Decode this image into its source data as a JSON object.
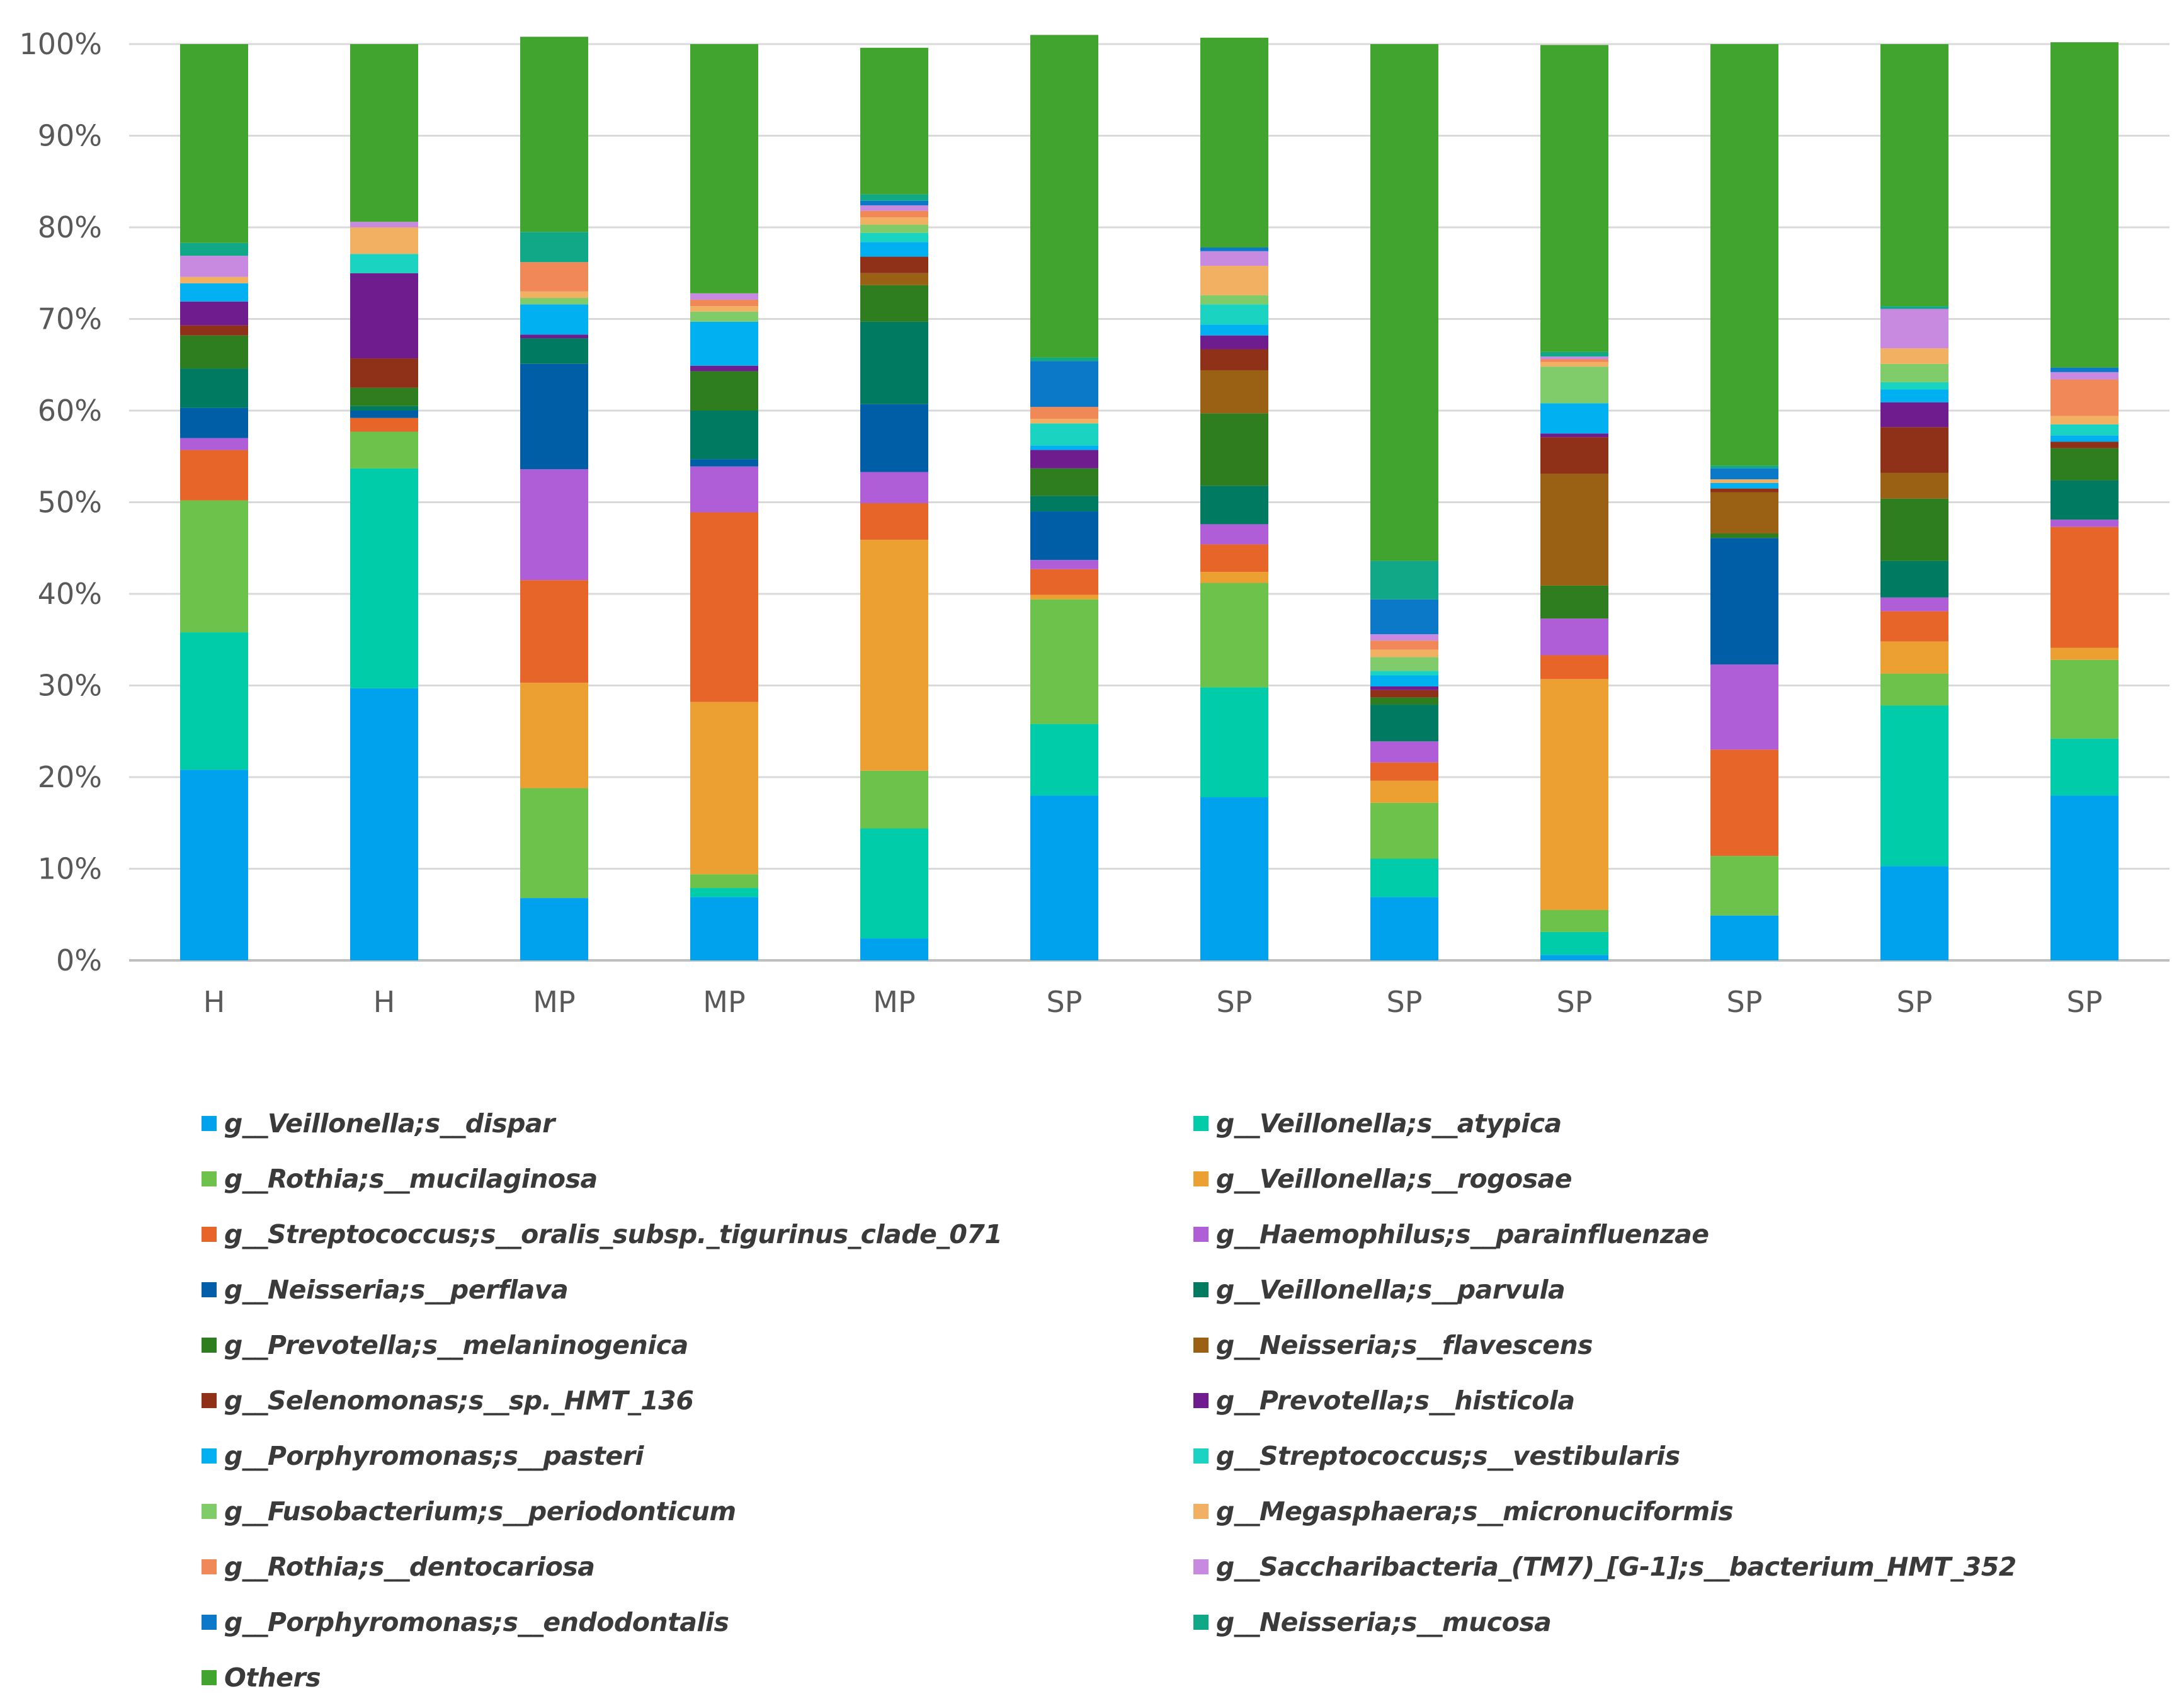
{
  "chart_data": {
    "type": "bar",
    "stacked": true,
    "percent": true,
    "title": "",
    "xlabel": "",
    "ylabel": "",
    "ylim": [
      0,
      100
    ],
    "y_ticks": [
      "0%",
      "10%",
      "20%",
      "30%",
      "40%",
      "50%",
      "60%",
      "70%",
      "80%",
      "90%",
      "100%"
    ],
    "categories": [
      "H",
      "H",
      "MP",
      "MP",
      "MP",
      "SP",
      "SP",
      "SP",
      "SP",
      "SP",
      "SP",
      "SP"
    ],
    "legend_position": "bottom",
    "series": [
      {
        "name": "g__Veillonella;s__dispar",
        "color": "#00a2ee",
        "values": [
          20.8,
          29.7,
          6.8,
          6.9,
          2.4,
          18.0,
          17.8,
          6.9,
          0.6,
          4.9,
          10.3,
          18.0
        ]
      },
      {
        "name": "g__Veillonella;s__atypica",
        "color": "#00ccaa",
        "values": [
          15.0,
          24.0,
          0,
          1.0,
          12.0,
          7.8,
          12.0,
          4.2,
          2.5,
          0,
          17.5,
          6.2
        ]
      },
      {
        "name": "g__Rothia;s__mucilaginosa",
        "color": "#6cc24a",
        "values": [
          14.4,
          4.0,
          12.0,
          1.5,
          6.3,
          13.6,
          11.4,
          6.1,
          2.4,
          6.5,
          3.5,
          8.6
        ]
      },
      {
        "name": "g__Veillonella;s__rogosae",
        "color": "#eda032",
        "values": [
          0,
          0,
          11.5,
          18.8,
          25.2,
          0.5,
          1.2,
          2.4,
          25.2,
          0,
          3.5,
          1.3
        ]
      },
      {
        "name": "g__Streptococcus;s__oralis_subsp._tigurinus_clade_071",
        "color": "#e8652a",
        "values": [
          5.5,
          1.5,
          11.2,
          20.7,
          4.0,
          2.8,
          3.0,
          2.0,
          2.6,
          11.6,
          3.3,
          13.2
        ]
      },
      {
        "name": "g__Haemophilus;s__parainfluenzae",
        "color": "#b05ed8",
        "values": [
          1.3,
          0,
          12.1,
          5.0,
          3.4,
          1.0,
          2.2,
          2.3,
          4.0,
          9.3,
          1.5,
          0.8
        ]
      },
      {
        "name": "g__Neisseria;s__perflava",
        "color": "#005ea6",
        "values": [
          3.3,
          0.8,
          11.5,
          0.8,
          7.4,
          5.3,
          0,
          0,
          0,
          13.8,
          0,
          0
        ]
      },
      {
        "name": "g__Veillonella;s__parvula",
        "color": "#007a60",
        "values": [
          4.3,
          0.5,
          2.8,
          5.3,
          9.0,
          1.7,
          4.2,
          4.0,
          0,
          0,
          4.0,
          4.3
        ]
      },
      {
        "name": "g__Prevotella;s__melaninogenica",
        "color": "#2e7d1e",
        "values": [
          3.6,
          2.0,
          0,
          4.3,
          4.0,
          3.0,
          7.9,
          0.8,
          3.6,
          0.5,
          6.8,
          3.5
        ]
      },
      {
        "name": "g__Neisseria;s__flavescens",
        "color": "#9a6114",
        "values": [
          0,
          0,
          0,
          0,
          1.3,
          0,
          4.7,
          0,
          12.2,
          4.5,
          2.8,
          0
        ]
      },
      {
        "name": "g__Selenomonas;s__sp._HMT_136",
        "color": "#8f3118",
        "values": [
          1.1,
          3.2,
          0,
          0,
          1.8,
          0,
          2.3,
          0.8,
          4.0,
          0.4,
          5.0,
          0.7
        ]
      },
      {
        "name": "g__Prevotella;s__histicola",
        "color": "#6e1c8e",
        "values": [
          2.6,
          9.3,
          0.4,
          0.6,
          0,
          2.0,
          1.5,
          0.4,
          0.4,
          0,
          2.7,
          0
        ]
      },
      {
        "name": "g__Porphyromonas;s__pasteri",
        "color": "#00b0f0",
        "values": [
          2.0,
          0,
          3.3,
          4.8,
          1.6,
          0.5,
          1.2,
          1.2,
          3.3,
          0.6,
          1.4,
          0.7
        ]
      },
      {
        "name": "g__Streptococcus;s__vestibularis",
        "color": "#1ad3c0",
        "values": [
          0,
          2.1,
          0,
          0,
          1.0,
          2.4,
          2.2,
          0.5,
          0,
          0,
          0.8,
          1.2
        ]
      },
      {
        "name": "g__Fusobacterium;s__periodonticum",
        "color": "#80cc6a",
        "values": [
          0,
          0,
          0.7,
          1.1,
          0.9,
          0,
          1.0,
          1.5,
          4.0,
          0,
          2.0,
          0
        ]
      },
      {
        "name": "g__Megasphaera;s__micronuciformis",
        "color": "#f2b063",
        "values": [
          0.7,
          2.9,
          0.7,
          0.6,
          0.8,
          0.5,
          3.2,
          0.8,
          0.5,
          0.4,
          1.7,
          0.9
        ]
      },
      {
        "name": "g__Rothia;s__dentocariosa",
        "color": "#f08858",
        "values": [
          0,
          0,
          3.2,
          0.7,
          0.7,
          1.3,
          0,
          1.0,
          0.3,
          0,
          0,
          4.0
        ]
      },
      {
        "name": "g__Saccharibacteria_(TM7)_[G-1];s__bacterium_HMT_352",
        "color": "#c88ae0",
        "values": [
          2.3,
          0.6,
          0,
          0.7,
          0.6,
          0,
          1.6,
          0.7,
          0.3,
          0,
          4.3,
          0.8
        ]
      },
      {
        "name": "g__Porphyromonas;s__endodontalis",
        "color": "#0c79c8",
        "values": [
          0,
          0,
          0,
          0,
          0.5,
          5.0,
          0.4,
          3.8,
          0,
          1.2,
          0,
          0.5
        ]
      },
      {
        "name": "g__Neisseria;s__mucosa",
        "color": "#11a888",
        "values": [
          1.4,
          0,
          3.3,
          0,
          0.7,
          0.4,
          0,
          4.2,
          0.5,
          0.3,
          0.3,
          0
        ]
      },
      {
        "name": "Others",
        "color": "#41a42f",
        "values": [
          21.7,
          19.4,
          21.3,
          27.2,
          16.0,
          35.2,
          22.9,
          56.4,
          33.5,
          46.0,
          28.6,
          35.5
        ]
      }
    ]
  }
}
